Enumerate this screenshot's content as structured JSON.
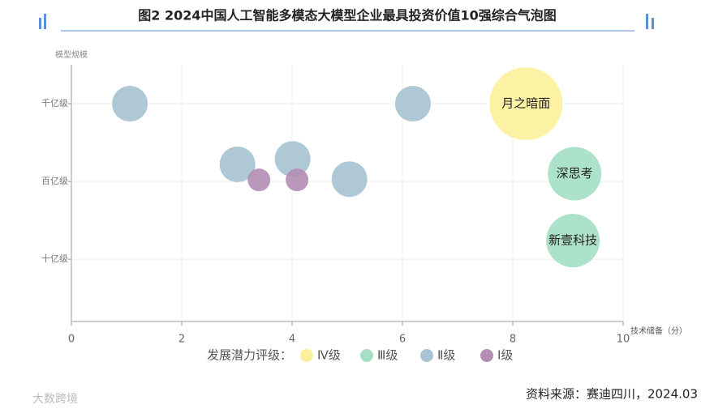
{
  "chart_data": {
    "type": "bubble",
    "title": "图2  2024中国人工智能多模态大模型企业最具投资价值10强综合气泡图",
    "y_label": "模型规模",
    "x_label": "技术储备（分）",
    "legend_title": "发展潜力评级：",
    "source": "资料来源：赛迪四川，2024.03",
    "logo": "大数跨境",
    "xlim": [
      0,
      10
    ],
    "xticks": [
      0,
      2,
      4,
      6,
      8,
      10
    ],
    "ylim": [
      0.2,
      3.5
    ],
    "yticks": [
      {
        "value": 1,
        "label": "十亿级"
      },
      {
        "value": 2,
        "label": "百亿级"
      },
      {
        "value": 3,
        "label": "千亿级"
      }
    ],
    "grid": true,
    "series": [
      {
        "name": "Ⅳ级",
        "color": "#fbf19c",
        "x": [
          8.24
        ],
        "y": [
          3
        ],
        "sizes": [
          45
        ],
        "labels": [
          "月之暗面"
        ]
      },
      {
        "name": "Ⅲ级",
        "color": "#a6dfc6",
        "x": [
          9.12,
          9.09
        ],
        "y": [
          2.1,
          1.24
        ],
        "sizes": [
          33,
          33
        ],
        "labels": [
          "深思考",
          "新壹科技"
        ]
      },
      {
        "name": "Ⅱ级",
        "color": "#a8c3d3",
        "x": [
          1.06,
          6.19,
          3.01,
          4.01,
          5.04
        ],
        "y": [
          3,
          3,
          2.22,
          2.29,
          2.03
        ],
        "sizes": [
          22,
          22,
          22,
          22,
          22
        ]
      },
      {
        "name": "Ⅰ级",
        "color": "#b38fb5",
        "x": [
          3.4,
          4.09
        ],
        "y": [
          2.02,
          2.02
        ],
        "sizes": [
          14,
          14
        ]
      }
    ]
  }
}
